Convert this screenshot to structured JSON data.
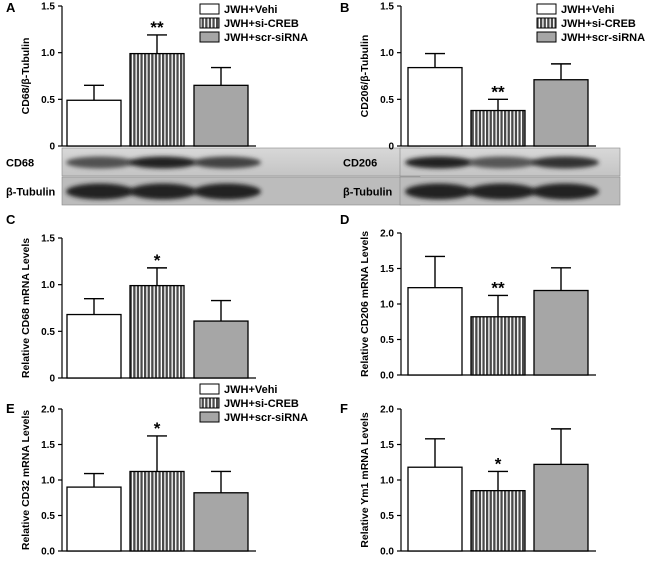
{
  "colors": {
    "vehi": "#ffffff",
    "si_creb": "#5a5a5a",
    "scr": "#a6a6a6"
  },
  "legend": [
    "JWH+Vehi",
    "JWH+si-CREB",
    "JWH+scr-siRNA"
  ],
  "chart_data": [
    {
      "panel": "A",
      "type": "bar",
      "ylabel": "CD68/β-Tubulin",
      "ylim": [
        0,
        1.5
      ],
      "yticks": [
        0,
        0.5,
        1.0,
        1.5
      ],
      "values": [
        0.49,
        0.99,
        0.65
      ],
      "errors": [
        0.16,
        0.2,
        0.19
      ],
      "significance": [
        "",
        "**",
        ""
      ],
      "legend": true,
      "blot_labels": [
        "CD68",
        "β-Tubulin"
      ]
    },
    {
      "panel": "B",
      "type": "bar",
      "ylabel": "CD206/β-Tubulin",
      "ylim": [
        0,
        1.5
      ],
      "yticks": [
        0,
        0.5,
        1.0,
        1.5
      ],
      "values": [
        0.84,
        0.38,
        0.71
      ],
      "errors": [
        0.15,
        0.12,
        0.17
      ],
      "significance": [
        "",
        "**",
        ""
      ],
      "legend": true,
      "blot_labels": [
        "CD206",
        "β-Tubulin"
      ]
    },
    {
      "panel": "C",
      "type": "bar",
      "ylabel": "Relative CD68 mRNA Levels",
      "ylim": [
        0,
        1.5
      ],
      "yticks": [
        0,
        0.5,
        1.0,
        1.5
      ],
      "values": [
        0.68,
        0.99,
        0.61
      ],
      "errors": [
        0.17,
        0.19,
        0.22
      ],
      "significance": [
        "",
        "*",
        ""
      ],
      "legend": false
    },
    {
      "panel": "D",
      "type": "bar",
      "ylabel": "Relative CD206 mRNA Levels",
      "ylim": [
        0,
        2.0
      ],
      "yticks": [
        0,
        0.5,
        1.0,
        1.5,
        2.0
      ],
      "values": [
        1.23,
        0.82,
        1.19
      ],
      "errors": [
        0.44,
        0.3,
        0.32
      ],
      "significance": [
        "",
        "**",
        ""
      ],
      "legend": false
    },
    {
      "panel": "E",
      "type": "bar",
      "ylabel": "Relative CD32 mRNA Levels",
      "ylim": [
        0,
        2.0
      ],
      "yticks": [
        0,
        0.5,
        1.0,
        1.5,
        2.0
      ],
      "values": [
        0.9,
        1.12,
        0.82
      ],
      "errors": [
        0.19,
        0.5,
        0.3
      ],
      "significance": [
        "",
        "*",
        ""
      ],
      "legend": true
    },
    {
      "panel": "F",
      "type": "bar",
      "ylabel": "Relative Ym1 mRNA Levels",
      "ylim": [
        0,
        2.0
      ],
      "yticks": [
        0,
        0.5,
        1.0,
        1.5,
        2.0
      ],
      "values": [
        1.18,
        0.85,
        1.22
      ],
      "errors": [
        0.4,
        0.27,
        0.5
      ],
      "significance": [
        "",
        "*",
        ""
      ],
      "legend": false
    }
  ]
}
